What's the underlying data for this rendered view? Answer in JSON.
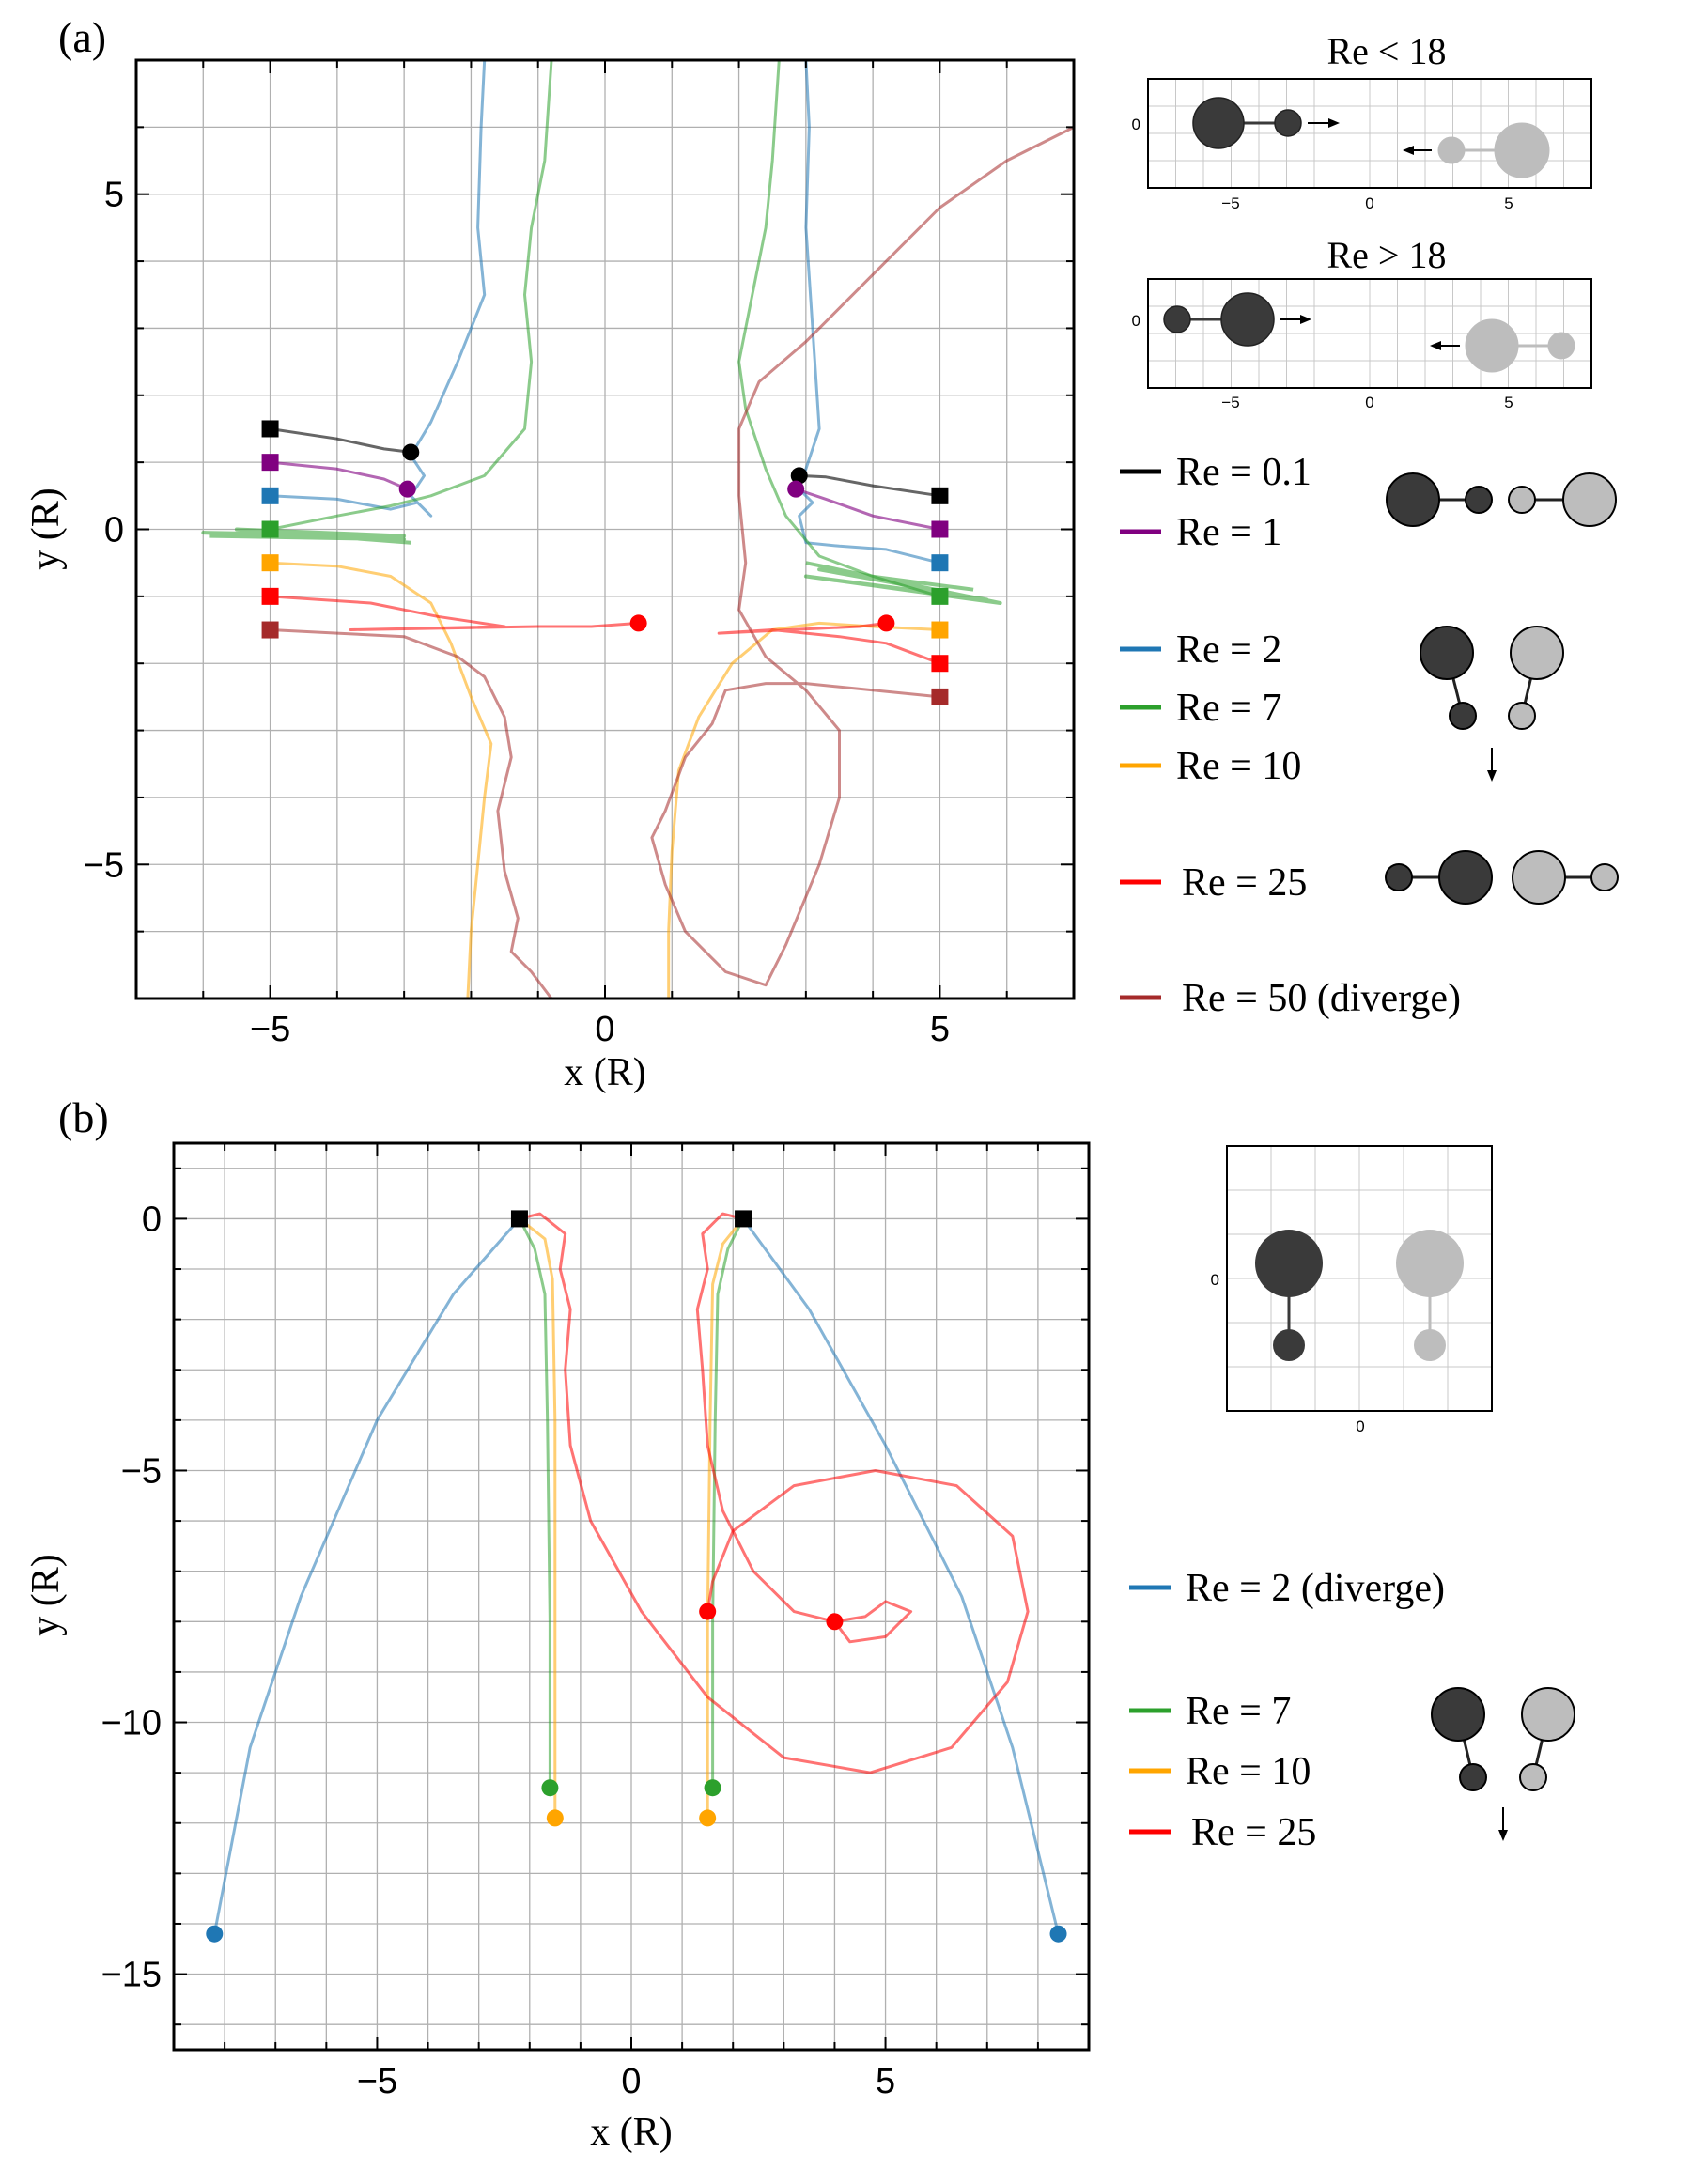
{
  "chart_data": [
    {
      "panel": "(a)",
      "type": "line",
      "xlabel": "x (R)",
      "ylabel": "y (R)",
      "xlim": [
        -7,
        7
      ],
      "ylim": [
        -7,
        7
      ],
      "xticks": [
        -5,
        0,
        5
      ],
      "yticks": [
        -5,
        0,
        5
      ],
      "xtick_labels": [
        "−5",
        "0",
        "5"
      ],
      "ytick_labels": [
        "−5",
        "0",
        "5"
      ],
      "grid": true,
      "legend_position": "right",
      "series": [
        {
          "name": "Re = 0.1",
          "color": "#000000",
          "left": {
            "start": [
              -5,
              1.5
            ],
            "end": [
              -2.9,
              1.15
            ]
          },
          "right": {
            "start": [
              5,
              0.5
            ],
            "end": [
              2.9,
              0.8
            ]
          }
        },
        {
          "name": "Re = 1",
          "color": "#800080",
          "left": {
            "start": [
              -5,
              1.0
            ],
            "end": [
              -2.95,
              0.6
            ]
          },
          "right": {
            "start": [
              5,
              0.0
            ],
            "end": [
              2.85,
              0.6
            ]
          }
        },
        {
          "name": "Re = 2",
          "color": "#1f77b4",
          "left": {
            "start": [
              -5,
              0.5
            ],
            "exit": [
              -1.8,
              7
            ]
          },
          "right": {
            "start": [
              5,
              -0.5
            ],
            "exit": [
              3.0,
              7
            ]
          }
        },
        {
          "name": "Re = 7",
          "color": "#2ca02c",
          "left": {
            "start": [
              -5,
              0.0
            ],
            "exit": [
              -0.8,
              7
            ]
          },
          "right": {
            "start": [
              5,
              -1.0
            ],
            "exit": [
              2.5,
              7
            ]
          }
        },
        {
          "name": "Re = 10",
          "color": "#ffa500",
          "left": {
            "start": [
              -5,
              -0.5
            ],
            "exit": [
              -2.0,
              -7
            ]
          },
          "right": {
            "start": [
              5,
              -1.5
            ],
            "exit": [
              1.0,
              -7
            ]
          }
        },
        {
          "name": "Re = 25",
          "color": "#ff0000",
          "left": {
            "start": [
              -5,
              -1.0
            ],
            "end": [
              0.5,
              -1.4
            ]
          },
          "right": {
            "start": [
              5,
              -2.0
            ],
            "end": [
              4.2,
              -1.4
            ]
          }
        },
        {
          "name": "Re = 50 (diverge)",
          "color": "#a52a2a",
          "left": {
            "start": [
              -5,
              -1.5
            ],
            "exit": [
              -0.8,
              -7
            ]
          },
          "right": {
            "start": [
              5,
              -2.5
            ],
            "exit": [
              7,
              6
            ]
          }
        }
      ]
    },
    {
      "panel": "(b)",
      "type": "line",
      "xlabel": "x (R)",
      "ylabel": "y (R)",
      "xlim": [
        -9,
        9
      ],
      "ylim": [
        -16.5,
        1.5
      ],
      "xticks": [
        -5,
        0,
        5
      ],
      "yticks": [
        0,
        -5,
        -10,
        -15
      ],
      "xtick_labels": [
        "−5",
        "0",
        "5"
      ],
      "ytick_labels": [
        "0",
        "−5",
        "−10",
        "−15"
      ],
      "grid": true,
      "legend_position": "right",
      "series": [
        {
          "name": "Re = 2 (diverge)",
          "color": "#1f77b4",
          "left": {
            "start": [
              -2.2,
              0
            ],
            "end": [
              -8.2,
              -14.2
            ]
          },
          "right": {
            "start": [
              2.2,
              0
            ],
            "end": [
              8.4,
              -14.2
            ]
          }
        },
        {
          "name": "Re = 7",
          "color": "#2ca02c",
          "left": {
            "start": [
              -2.2,
              0
            ],
            "end": [
              -1.6,
              -11.3
            ]
          },
          "right": {
            "start": [
              2.2,
              0
            ],
            "end": [
              1.6,
              -11.3
            ]
          }
        },
        {
          "name": "Re = 10",
          "color": "#ffa500",
          "left": {
            "start": [
              -2.2,
              0
            ],
            "end": [
              -1.5,
              -11.9
            ]
          },
          "right": {
            "start": [
              2.2,
              0
            ],
            "end": [
              1.5,
              -11.9
            ]
          }
        },
        {
          "name": "Re = 25",
          "color": "#ff0000",
          "left": {
            "start": [
              -2.2,
              0
            ],
            "end": [
              4.0,
              -8.0
            ]
          },
          "right": {
            "start": [
              2.2,
              0
            ],
            "end": [
              1.5,
              -7.8
            ]
          }
        }
      ]
    }
  ],
  "panel_a": {
    "label": "(a)",
    "inset_top_title": "Re < 18",
    "inset_bottom_title": "Re > 18",
    "inset_ytick": "0",
    "inset_xticks": [
      "−5",
      "0",
      "5"
    ],
    "legend": [
      {
        "label": "Re = 0.1",
        "color": "#000000"
      },
      {
        "label": "Re = 1",
        "color": "#800080"
      },
      {
        "label": "Re = 2",
        "color": "#1f77b4"
      },
      {
        "label": "Re = 7",
        "color": "#2ca02c"
      },
      {
        "label": "Re = 10",
        "color": "#ffa500"
      },
      {
        "label": "Re = 25",
        "color": "#ff0000"
      },
      {
        "label": "Re = 50 (diverge)",
        "color": "#a52a2a"
      }
    ]
  },
  "panel_b": {
    "label": "(b)",
    "inset_ytick": "0",
    "inset_xtick": "0",
    "legend": [
      {
        "label": "Re = 2 (diverge)",
        "color": "#1f77b4"
      },
      {
        "label": "Re = 7",
        "color": "#2ca02c"
      },
      {
        "label": "Re = 10",
        "color": "#ffa500"
      },
      {
        "label": "Re = 25",
        "color": "#ff0000"
      }
    ]
  },
  "colors": {
    "sphere_dark": "#3a3a3a",
    "sphere_light": "#bdbdbd",
    "grid": "#b0b0b0"
  }
}
